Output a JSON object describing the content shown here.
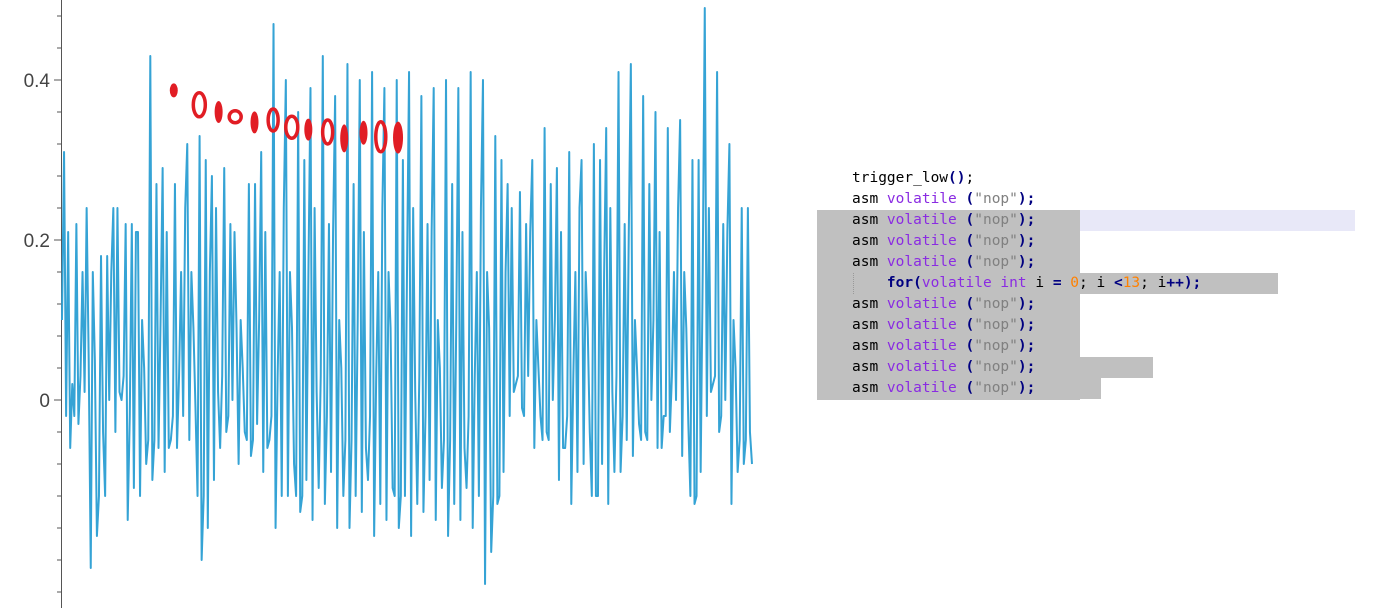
{
  "chart_data": {
    "type": "line",
    "title": "",
    "xlabel": "",
    "ylabel": "",
    "ylim": [
      -0.26,
      0.5
    ],
    "y_ticks": [
      {
        "value": 0.4,
        "label": "0.4"
      },
      {
        "value": 0.2,
        "label": "0.2"
      },
      {
        "value": 0,
        "label": "0"
      }
    ],
    "grid": false,
    "series": [
      {
        "color": "#35a3d5",
        "pattern": [
          0.1,
          -0.12,
          0.21,
          -0.02,
          0.16,
          -0.05,
          0.24,
          0.03
        ],
        "peaks": [
          0.31,
          0.22,
          0.05,
          0.18,
          0.24,
          0.22,
          0.21,
          0.43,
          0.29,
          0.27,
          0.32,
          0.33,
          0.28,
          0.29,
          0.09,
          0.27,
          0.31,
          0.47,
          0.4,
          0.36,
          0.39,
          0.43,
          0.38,
          0.42,
          0.4,
          0.41,
          0.39,
          0.4,
          0.41,
          0.38,
          0.39,
          0.4,
          0.39,
          0.41,
          0.4,
          0.33,
          0.27,
          0.26,
          0.3,
          0.34,
          0.29,
          0.31,
          0.3,
          0.32,
          0.34,
          0.41,
          0.42,
          0.38,
          0.36,
          0.34,
          0.35,
          0.3,
          0.49,
          0.41,
          0.32,
          0.24
        ],
        "troughs": [
          -0.02,
          -0.03,
          -0.21,
          -0.04,
          -0.04,
          -0.15,
          -0.12,
          -0.1,
          -0.09,
          -0.06,
          -0.05,
          -0.2,
          -0.1,
          -0.04,
          -0.08,
          -0.07,
          -0.09,
          -0.16,
          -0.12,
          -0.14,
          -0.15,
          -0.13,
          -0.16,
          -0.16,
          -0.14,
          -0.17,
          -0.15,
          -0.16,
          -0.17,
          -0.14,
          -0.15,
          -0.17,
          -0.15,
          -0.16,
          -0.23,
          -0.13,
          -0.02,
          -0.01,
          -0.06,
          -0.04,
          -0.1,
          -0.13,
          -0.08,
          -0.12,
          -0.13,
          -0.09,
          -0.07,
          -0.04,
          -0.06,
          -0.04,
          -0.07,
          -0.13,
          -0.02,
          -0.04,
          -0.13,
          -0.08
        ]
      }
    ],
    "annotations": {
      "marker_color": "#e11d24",
      "markers": [
        {
          "x": 0.162,
          "y": 0.387,
          "rx": 4,
          "ry": 7,
          "filled": true
        },
        {
          "x": 0.199,
          "y": 0.369,
          "rx": 6,
          "ry": 12,
          "filled": false
        },
        {
          "x": 0.227,
          "y": 0.36,
          "rx": 4,
          "ry": 11,
          "filled": true
        },
        {
          "x": 0.251,
          "y": 0.354,
          "rx": 6,
          "ry": 6,
          "filled": false
        },
        {
          "x": 0.279,
          "y": 0.347,
          "rx": 4,
          "ry": 11,
          "filled": true
        },
        {
          "x": 0.306,
          "y": 0.35,
          "rx": 5,
          "ry": 11,
          "filled": false
        },
        {
          "x": 0.333,
          "y": 0.341,
          "rx": 6,
          "ry": 11,
          "filled": false
        },
        {
          "x": 0.357,
          "y": 0.338,
          "rx": 4,
          "ry": 11,
          "filled": true
        },
        {
          "x": 0.385,
          "y": 0.335,
          "rx": 5,
          "ry": 12,
          "filled": false
        },
        {
          "x": 0.409,
          "y": 0.327,
          "rx": 4,
          "ry": 14,
          "filled": true
        },
        {
          "x": 0.437,
          "y": 0.334,
          "rx": 4,
          "ry": 12,
          "filled": true
        },
        {
          "x": 0.462,
          "y": 0.329,
          "rx": 5,
          "ry": 15,
          "filled": false
        },
        {
          "x": 0.487,
          "y": 0.328,
          "rx": 5,
          "ry": 16,
          "filled": true
        }
      ]
    }
  },
  "code": {
    "lines": [
      [
        {
          "t": "trigger_low",
          "c": "plain"
        },
        {
          "t": "()",
          "c": "bold"
        },
        {
          "t": ";",
          "c": "plain"
        }
      ],
      [
        {
          "t": "asm ",
          "c": "plain"
        },
        {
          "t": "volatile",
          "c": "kw"
        },
        {
          "t": " (",
          "c": "bold"
        },
        {
          "t": "\"nop\"",
          "c": "str"
        },
        {
          "t": ");",
          "c": "bold"
        }
      ],
      [
        {
          "t": "asm ",
          "c": "plain"
        },
        {
          "t": "volatile",
          "c": "kw"
        },
        {
          "t": " (",
          "c": "bold"
        },
        {
          "t": "\"nop\"",
          "c": "str"
        },
        {
          "t": ");",
          "c": "bold"
        }
      ],
      [
        {
          "t": "asm ",
          "c": "plain"
        },
        {
          "t": "volatile",
          "c": "kw"
        },
        {
          "t": " (",
          "c": "bold"
        },
        {
          "t": "\"nop\"",
          "c": "str"
        },
        {
          "t": ");",
          "c": "bold"
        }
      ],
      [
        {
          "t": "asm ",
          "c": "plain"
        },
        {
          "t": "volatile",
          "c": "kw"
        },
        {
          "t": " (",
          "c": "bold"
        },
        {
          "t": "\"nop\"",
          "c": "str"
        },
        {
          "t": ");",
          "c": "bold"
        }
      ],
      [
        {
          "t": "    ",
          "c": "plain"
        },
        {
          "t": "for",
          "c": "bold"
        },
        {
          "t": "(",
          "c": "bold"
        },
        {
          "t": "volatile int",
          "c": "kw"
        },
        {
          "t": " i ",
          "c": "plain"
        },
        {
          "t": "=",
          "c": "bold"
        },
        {
          "t": " ",
          "c": "plain"
        },
        {
          "t": "0",
          "c": "num"
        },
        {
          "t": "; i ",
          "c": "plain"
        },
        {
          "t": "<",
          "c": "bold"
        },
        {
          "t": "13",
          "c": "num"
        },
        {
          "t": "; i",
          "c": "plain"
        },
        {
          "t": "++",
          "c": "bold"
        },
        {
          "t": ");",
          "c": "bold"
        }
      ],
      [
        {
          "t": "asm ",
          "c": "plain"
        },
        {
          "t": "volatile",
          "c": "kw"
        },
        {
          "t": " (",
          "c": "bold"
        },
        {
          "t": "\"nop\"",
          "c": "str"
        },
        {
          "t": ");",
          "c": "bold"
        }
      ],
      [
        {
          "t": "asm ",
          "c": "plain"
        },
        {
          "t": "volatile",
          "c": "kw"
        },
        {
          "t": " (",
          "c": "bold"
        },
        {
          "t": "\"nop\"",
          "c": "str"
        },
        {
          "t": ");",
          "c": "bold"
        }
      ],
      [
        {
          "t": "asm ",
          "c": "plain"
        },
        {
          "t": "volatile",
          "c": "kw"
        },
        {
          "t": " (",
          "c": "bold"
        },
        {
          "t": "\"nop\"",
          "c": "str"
        },
        {
          "t": ");",
          "c": "bold"
        }
      ],
      [
        {
          "t": "asm ",
          "c": "plain"
        },
        {
          "t": "volatile",
          "c": "kw"
        },
        {
          "t": " (",
          "c": "bold"
        },
        {
          "t": "\"nop\"",
          "c": "str"
        },
        {
          "t": ");",
          "c": "bold"
        }
      ],
      [
        {
          "t": "asm ",
          "c": "plain"
        },
        {
          "t": "volatile",
          "c": "kw"
        },
        {
          "t": " (",
          "c": "bold"
        },
        {
          "t": "\"nop\"",
          "c": "str"
        },
        {
          "t": ");",
          "c": "bold"
        }
      ]
    ]
  }
}
